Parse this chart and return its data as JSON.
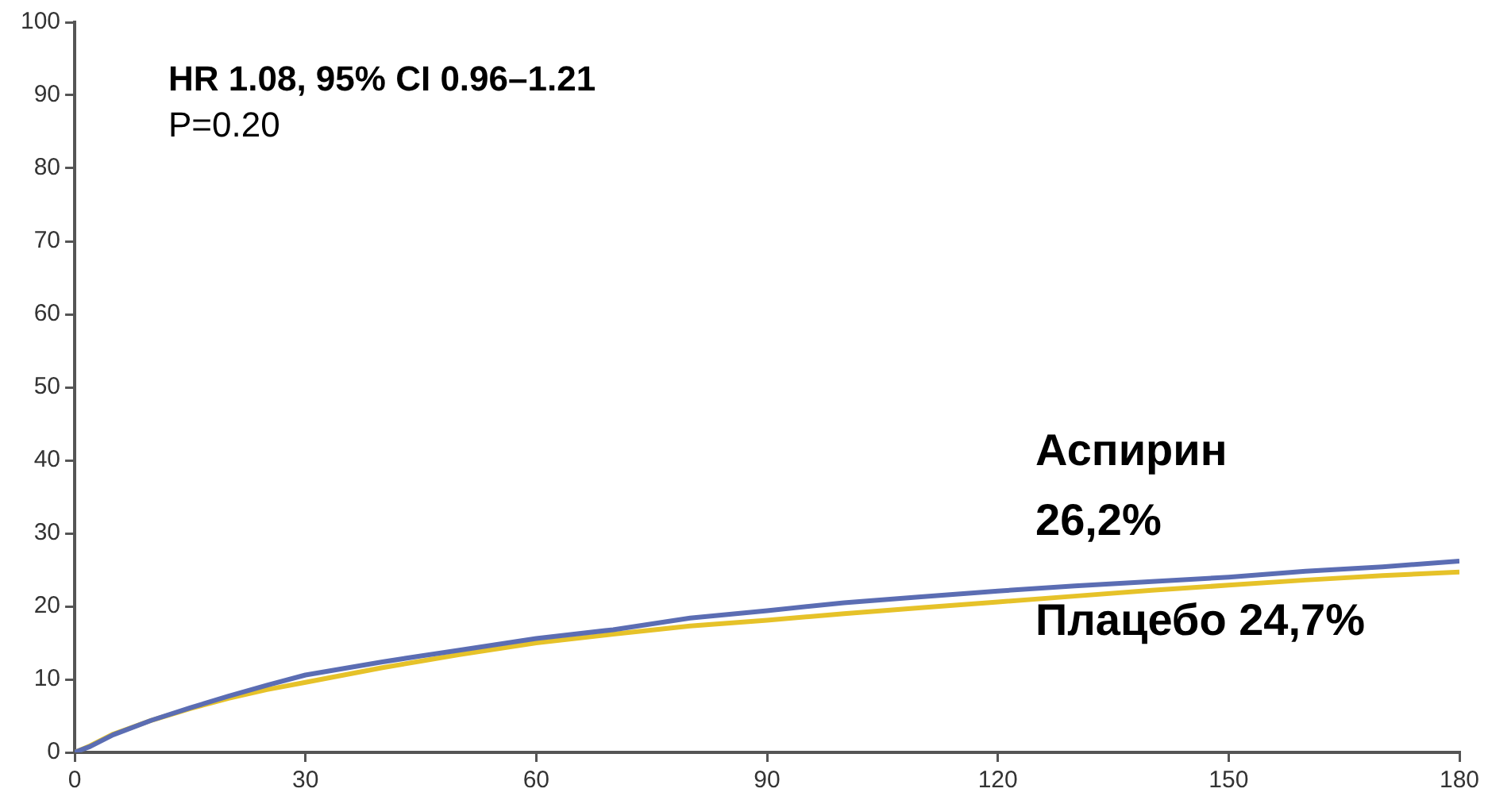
{
  "chart_data": {
    "type": "line",
    "x": [
      0,
      2,
      5,
      10,
      15,
      20,
      25,
      30,
      35,
      40,
      45,
      50,
      60,
      70,
      80,
      90,
      100,
      110,
      120,
      130,
      140,
      150,
      160,
      170,
      180
    ],
    "series": [
      {
        "color": "#5b6db3",
        "values": [
          0,
          0.8,
          2.4,
          4.4,
          6.1,
          7.7,
          9.2,
          10.6,
          11.5,
          12.4,
          13.2,
          14.0,
          15.6,
          16.8,
          18.4,
          19.4,
          20.5,
          21.3,
          22.1,
          22.8,
          23.4,
          24.0,
          24.8,
          25.4,
          26.2
        ]
      },
      {
        "color": "#e6c229",
        "values": [
          0,
          0.9,
          2.5,
          4.4,
          6.0,
          7.4,
          8.6,
          9.6,
          10.6,
          11.6,
          12.5,
          13.4,
          15.0,
          16.2,
          17.3,
          18.1,
          19.0,
          19.8,
          20.6,
          21.4,
          22.2,
          22.9,
          23.6,
          24.2,
          24.7
        ]
      }
    ],
    "xlim": [
      0,
      180
    ],
    "xticks": [
      0,
      30,
      60,
      90,
      120,
      150,
      180
    ],
    "ylim": [
      0,
      100
    ],
    "yticks": [
      0,
      10,
      20,
      30,
      40,
      50,
      60,
      70,
      80,
      90,
      100
    ],
    "grid": false,
    "legend": false,
    "marker": "none",
    "line_style": "solid",
    "annotations": [
      "HR 1.08, 95% CI 0.96–1.21",
      "P=0.20",
      "Аспирин 26,2%",
      "Плацебо 24,7%"
    ]
  }
}
